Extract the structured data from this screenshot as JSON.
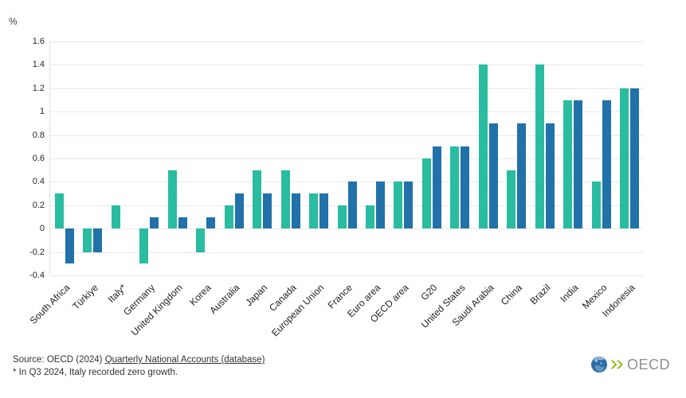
{
  "chart": {
    "unit_label": "%",
    "y_ticks": [
      "1.6",
      "1.4",
      "1.2",
      "1",
      "0.8",
      "0.6",
      "0.4",
      "0.2",
      "0",
      "-0.2",
      "-0.4"
    ]
  },
  "chart_data": {
    "type": "bar",
    "title": "",
    "xlabel": "",
    "ylabel": "%",
    "ylim": [
      -0.4,
      1.6
    ],
    "ytick_step": 0.2,
    "grid": true,
    "legend_position": "none",
    "categories": [
      "South Africa",
      "Türkiye",
      "Italy*",
      "Germany",
      "United Kingdom",
      "Korea",
      "Australia",
      "Japan",
      "Canada",
      "European Union",
      "France",
      "Euro area",
      "OECD area",
      "G20",
      "United States",
      "Saudi Arabia",
      "China",
      "Brazil",
      "India",
      "Mexico",
      "Indonesia"
    ],
    "series": [
      {
        "name": "teal-series",
        "color": "#2ABCA1",
        "values": [
          0.3,
          -0.2,
          0.2,
          -0.3,
          0.5,
          -0.2,
          0.2,
          0.5,
          0.5,
          0.3,
          0.2,
          0.2,
          0.4,
          0.6,
          0.7,
          1.4,
          0.5,
          1.4,
          1.1,
          0.4,
          1.2
        ]
      },
      {
        "name": "blue-series",
        "color": "#2072A8",
        "values": [
          -0.3,
          -0.2,
          0,
          0.1,
          0.1,
          0.1,
          0.3,
          0.3,
          0.3,
          0.3,
          0.4,
          0.4,
          0.4,
          0.7,
          0.7,
          0.9,
          0.9,
          0.9,
          1.1,
          1.1,
          1.2
        ]
      }
    ]
  },
  "footer": {
    "source_prefix": "Source: OECD (2024) ",
    "source_link1": "Quarterly National Accounts ",
    "source_link2": "(database)",
    "footnote": "* In Q3 2024, Italy recorded zero growth.",
    "logo_text": "OECD"
  },
  "colors": {
    "teal": "#2ABCA1",
    "blue": "#2072A8",
    "gridline": "#e9e9e9",
    "axis_text": "#262626",
    "footer_text": "#333333",
    "logo_gray": "#8d9093",
    "logo_green": "#84bd00",
    "logo_globe_blue": "#2e6ea7"
  }
}
